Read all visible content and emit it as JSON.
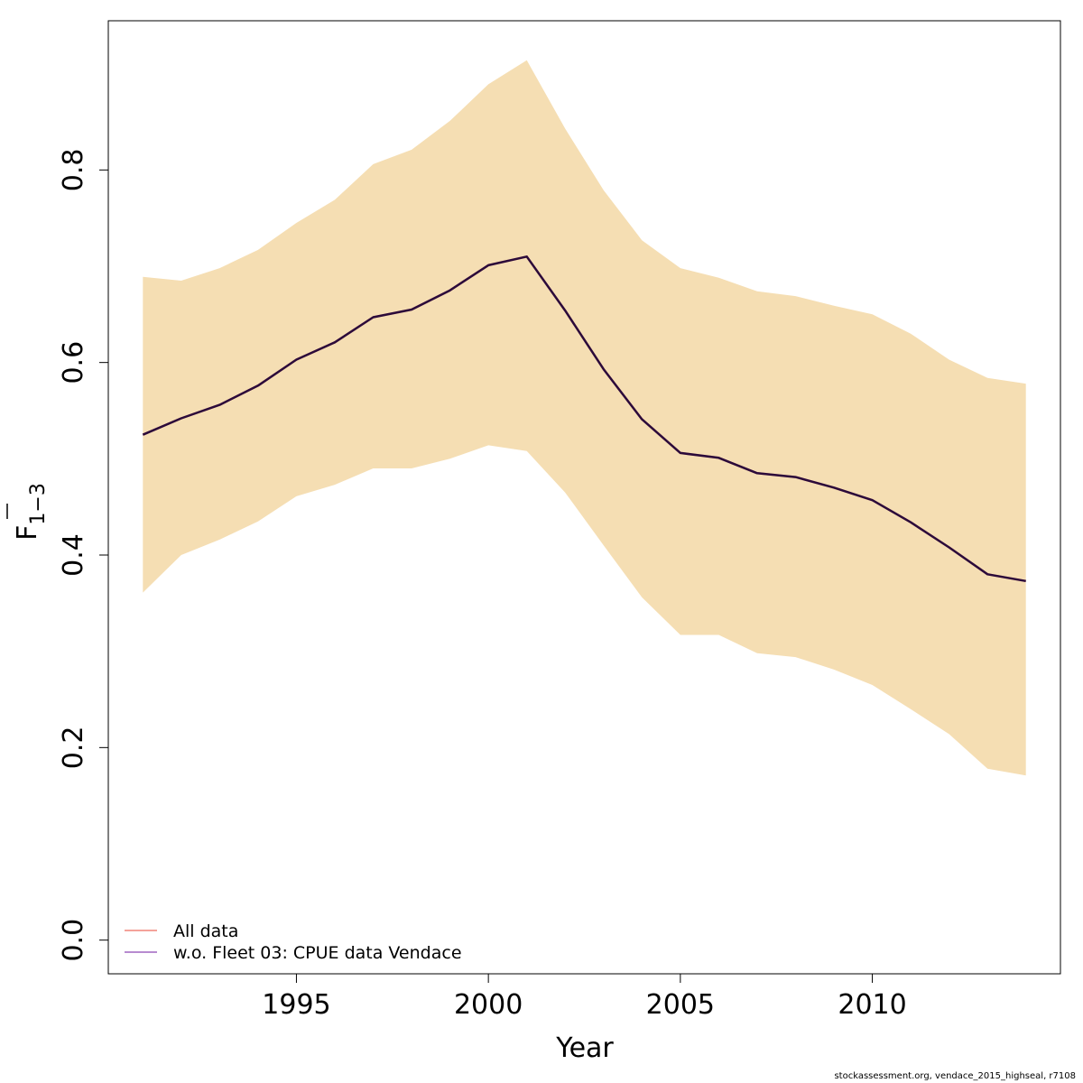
{
  "chart_data": {
    "type": "line",
    "xlabel": "Year",
    "ylabel_main": "F",
    "ylabel_sub": "1−3",
    "xlim": [
      1990.1,
      2014.9
    ],
    "ylim": [
      -0.035,
      0.955
    ],
    "x_ticks": [
      1995,
      2000,
      2005,
      2010
    ],
    "x_tick_labels": [
      "1995",
      "2000",
      "2005",
      "2010"
    ],
    "y_ticks": [
      0.0,
      0.2,
      0.4,
      0.6,
      0.8
    ],
    "y_tick_labels": [
      "0.0",
      "0.2",
      "0.4",
      "0.6",
      "0.8"
    ],
    "grid": false,
    "legend_position": "bottom-left",
    "x": [
      1991,
      1992,
      1993,
      1994,
      1995,
      1996,
      1997,
      1998,
      1999,
      2000,
      2001,
      2002,
      2003,
      2004,
      2005,
      2006,
      2007,
      2008,
      2009,
      2010,
      2011,
      2012,
      2013,
      2014
    ],
    "series": [
      {
        "name": "All data",
        "color": "#f4a29a",
        "values": [
          0.525,
          0.542,
          0.556,
          0.576,
          0.603,
          0.621,
          0.647,
          0.655,
          0.675,
          0.701,
          0.71,
          0.654,
          0.593,
          0.541,
          0.506,
          0.501,
          0.485,
          0.481,
          0.47,
          0.457,
          0.434,
          0.408,
          0.38,
          0.373
        ]
      },
      {
        "name": "w.o. Fleet 03:  CPUE data Vendace",
        "color": "#b78bd0",
        "values": [
          0.525,
          0.542,
          0.556,
          0.576,
          0.603,
          0.621,
          0.647,
          0.655,
          0.675,
          0.701,
          0.71,
          0.654,
          0.593,
          0.541,
          0.506,
          0.501,
          0.485,
          0.481,
          0.47,
          0.457,
          0.434,
          0.408,
          0.38,
          0.373
        ]
      }
    ],
    "confidence_band": {
      "color": "#f5deb3",
      "upper": [
        0.689,
        0.685,
        0.698,
        0.717,
        0.745,
        0.769,
        0.806,
        0.821,
        0.851,
        0.889,
        0.914,
        0.843,
        0.779,
        0.727,
        0.698,
        0.688,
        0.674,
        0.669,
        0.659,
        0.65,
        0.63,
        0.603,
        0.584,
        0.578
      ],
      "lower": [
        0.361,
        0.4,
        0.416,
        0.435,
        0.461,
        0.473,
        0.49,
        0.49,
        0.5,
        0.514,
        0.508,
        0.465,
        0.41,
        0.356,
        0.317,
        0.317,
        0.298,
        0.294,
        0.281,
        0.265,
        0.24,
        0.214,
        0.178,
        0.171
      ]
    },
    "estimate_line_color": "#2b0b3a"
  },
  "footer_text": "stockassessment.org, vendace_2015_highseal, r7108"
}
